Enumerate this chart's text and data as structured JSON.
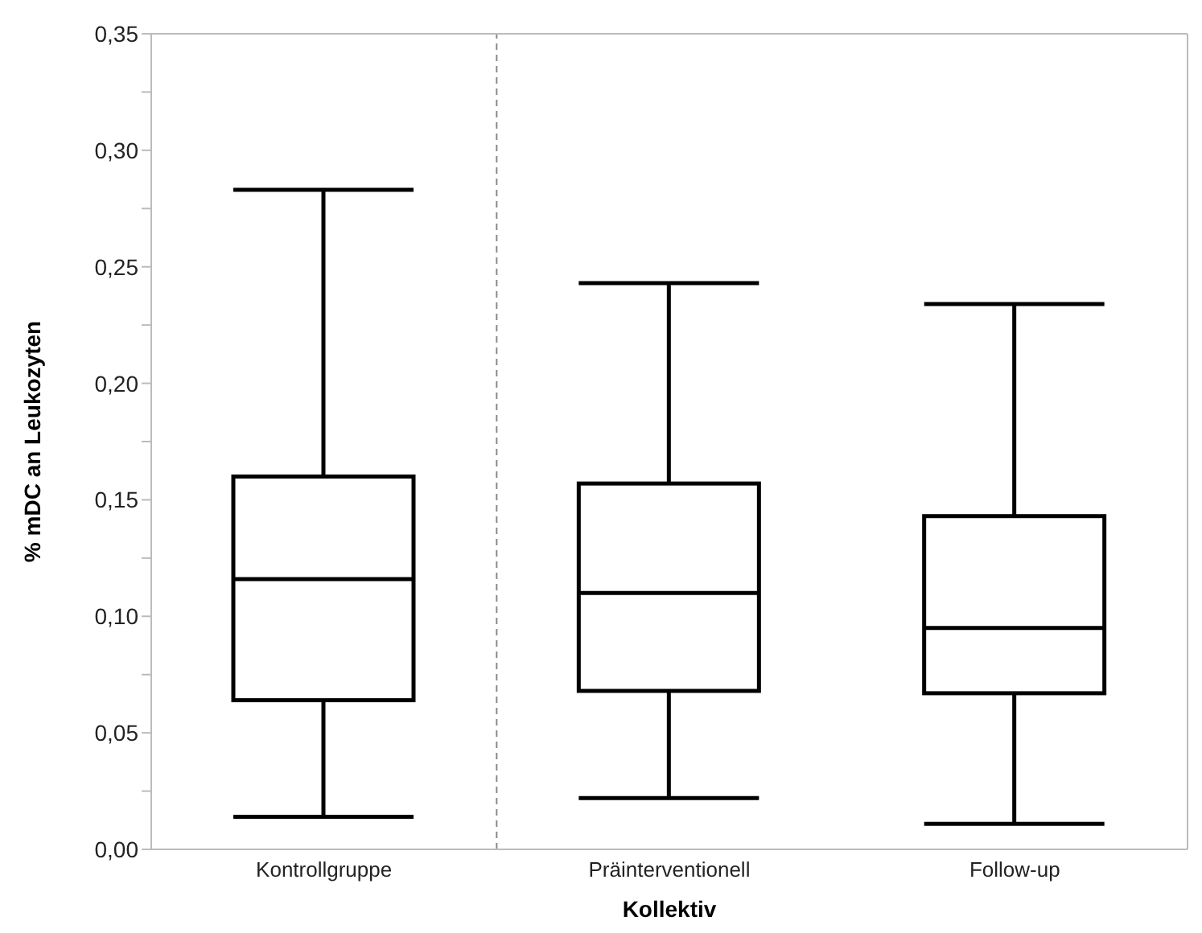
{
  "chart_data": {
    "type": "box",
    "xlabel": "Kollektiv",
    "ylabel": "% mDC an Leukozyten",
    "categories": [
      "Kontrollgruppe",
      "Präinterventionell",
      "Follow-up"
    ],
    "color": "#000000",
    "boxes": [
      {
        "low": 0.014,
        "q1": 0.064,
        "median": 0.116,
        "q3": 0.16,
        "high": 0.283
      },
      {
        "low": 0.022,
        "q1": 0.068,
        "median": 0.11,
        "q3": 0.157,
        "high": 0.243
      },
      {
        "low": 0.011,
        "q1": 0.067,
        "median": 0.095,
        "q3": 0.143,
        "high": 0.234
      }
    ],
    "ylim": [
      0,
      0.35
    ],
    "yticks": [
      {
        "value": 0,
        "label": "0,00"
      },
      {
        "value": 0.025,
        "label": null
      },
      {
        "value": 0.05,
        "label": "0,05"
      },
      {
        "value": 0.075,
        "label": null
      },
      {
        "value": 0.1,
        "label": "0,10"
      },
      {
        "value": 0.125,
        "label": null
      },
      {
        "value": 0.15,
        "label": "0,15"
      },
      {
        "value": 0.175,
        "label": null
      },
      {
        "value": 0.2,
        "label": "0,20"
      },
      {
        "value": 0.225,
        "label": null
      },
      {
        "value": 0.25,
        "label": "0,25"
      },
      {
        "value": 0.275,
        "label": null
      },
      {
        "value": 0.3,
        "label": "0,30"
      },
      {
        "value": 0.325,
        "label": null
      },
      {
        "value": 0.35,
        "label": "0,35"
      }
    ]
  }
}
